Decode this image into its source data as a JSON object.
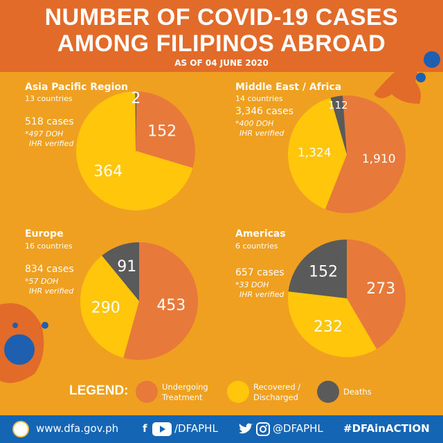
{
  "header": {
    "title_line1": "NUMBER OF COVID-19 CASES",
    "title_line2": "AMONG FILIPINOS ABROAD",
    "subtitle": "AS OF 04 JUNE 2020"
  },
  "colors": {
    "undergoing": "#e77a3a",
    "recovered": "#ffc60c",
    "deaths": "#5a5a5a",
    "header_bg": "#e36b2a",
    "page_bg": "#f0a020",
    "footer_bg": "#1565b5"
  },
  "chart_data": [
    {
      "type": "pie",
      "title": "Asia Pacific Region",
      "countries": "13 countries",
      "cases": "518 cases",
      "note_line1": "*497 DOH",
      "note_line2": "IHR verified",
      "series": [
        {
          "name": "Undergoing Treatment",
          "value": 152
        },
        {
          "name": "Recovered / Discharged",
          "value": 364
        },
        {
          "name": "Deaths",
          "value": 2
        }
      ]
    },
    {
      "type": "pie",
      "title": "Middle East / Africa",
      "countries": "14 countries",
      "cases": "3,346 cases",
      "note_line1": "*400 DOH",
      "note_line2": "IHR verified",
      "series": [
        {
          "name": "Undergoing Treatment",
          "value": 1910
        },
        {
          "name": "Recovered / Discharged",
          "value": 1324
        },
        {
          "name": "Deaths",
          "value": 112
        }
      ],
      "labels": [
        "1,910",
        "1,324",
        "112"
      ]
    },
    {
      "type": "pie",
      "title": "Europe",
      "countries": "16 countries",
      "cases": "834 cases",
      "note_line1": "*57 DOH",
      "note_line2": "IHR verified",
      "series": [
        {
          "name": "Undergoing Treatment",
          "value": 453
        },
        {
          "name": "Recovered / Discharged",
          "value": 290
        },
        {
          "name": "Deaths",
          "value": 91
        }
      ]
    },
    {
      "type": "pie",
      "title": "Americas",
      "countries": "6 countries",
      "cases": "657 cases",
      "note_line1": "*33 DOH",
      "note_line2": "IHR verified",
      "series": [
        {
          "name": "Undergoing Treatment",
          "value": 273
        },
        {
          "name": "Recovered / Discharged",
          "value": 232
        },
        {
          "name": "Deaths",
          "value": 152
        }
      ]
    }
  ],
  "legend": {
    "title": "LEGEND:",
    "undergoing_line1": "Undergoing",
    "undergoing_line2": "Treatment",
    "recovered_line1": "Recovered /",
    "recovered_line2": "Discharged",
    "deaths": "Deaths"
  },
  "footer": {
    "website": "www.dfa.gov.ph",
    "fb_yt_handle": "/DFAPHL",
    "tw_ig_handle": "@DFAPHL",
    "hashtag": "#DFAinACTION",
    "fb_glyph": "f"
  },
  "icons": [
    "seal-icon",
    "facebook-icon",
    "youtube-icon",
    "twitter-icon",
    "instagram-icon",
    "virus-icon"
  ]
}
